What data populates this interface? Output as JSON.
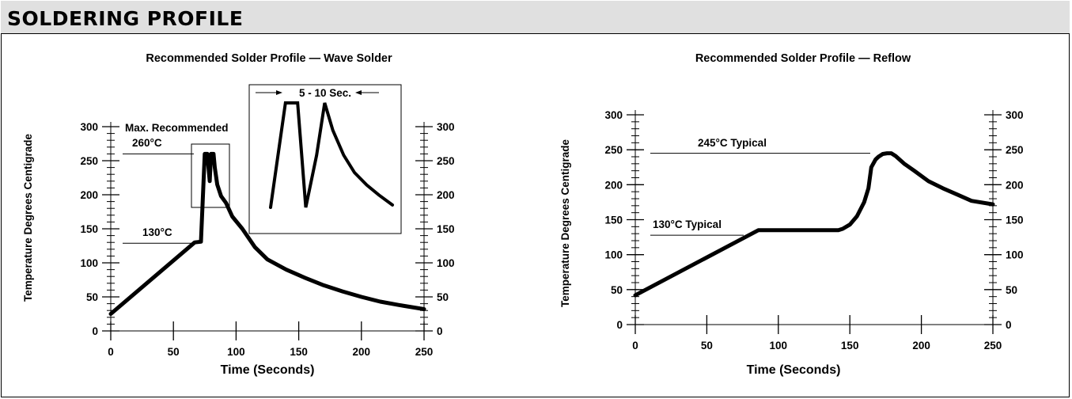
{
  "header": {
    "title": "SOLDERING PROFILE"
  },
  "chart_data": [
    {
      "type": "line",
      "title": "Recommended Solder Profile — Wave Solder",
      "xlabel": "Time (Seconds)",
      "ylabel": "Temperature Degrees Centigrade",
      "xlim": [
        0,
        250
      ],
      "ylim": [
        0,
        300
      ],
      "x_ticks": [
        0,
        50,
        100,
        150,
        200,
        250
      ],
      "y_ticks": [
        0,
        50,
        100,
        150,
        200,
        250,
        300
      ],
      "grid": false,
      "series": [
        {
          "x": [
            0,
            67,
            72,
            75,
            77,
            79,
            80,
            82,
            83,
            85,
            88,
            92,
            97,
            105,
            115,
            125,
            140,
            155,
            170,
            185,
            200,
            215,
            230,
            250
          ],
          "values": [
            25,
            130,
            131,
            260,
            260,
            220,
            260,
            260,
            240,
            215,
            198,
            188,
            168,
            150,
            123,
            105,
            90,
            78,
            67,
            58,
            50,
            43,
            38,
            32
          ]
        }
      ],
      "annotations": [
        {
          "label": "Max. Recommended",
          "y": 260
        },
        {
          "label": "260°C",
          "y": 260
        },
        {
          "label": "130°C",
          "y": 130
        }
      ],
      "inset": {
        "label": "5 - 10 Sec.",
        "x": [
          0,
          11,
          13,
          20,
          26,
          34,
          40,
          46,
          54,
          62,
          71,
          80,
          90
        ],
        "values": [
          40,
          250,
          250,
          250,
          40,
          145,
          250,
          195,
          145,
          110,
          85,
          65,
          45
        ]
      }
    },
    {
      "type": "line",
      "title": "Recommended Solder Profile — Reflow",
      "xlabel": "Time (Seconds)",
      "ylabel": "Temperature Degrees Centigrade",
      "xlim": [
        0,
        250
      ],
      "ylim": [
        0,
        300
      ],
      "x_ticks": [
        0,
        50,
        100,
        150,
        200,
        250
      ],
      "y_ticks": [
        0,
        50,
        100,
        150,
        200,
        250,
        300
      ],
      "grid": false,
      "series": [
        {
          "x": [
            0,
            86,
            142,
            145,
            150,
            155,
            160,
            163,
            165,
            168,
            170,
            173,
            176,
            179,
            182,
            188,
            195,
            205,
            215,
            225,
            235,
            250
          ],
          "values": [
            42,
            135,
            135,
            137,
            143,
            155,
            175,
            195,
            225,
            236,
            240,
            244,
            245,
            245,
            241,
            230,
            220,
            205,
            195,
            186,
            177,
            172
          ]
        }
      ],
      "annotations": [
        {
          "label": "245°C Typical",
          "y": 245
        },
        {
          "label": "130°C Typical",
          "y": 130
        }
      ]
    }
  ]
}
